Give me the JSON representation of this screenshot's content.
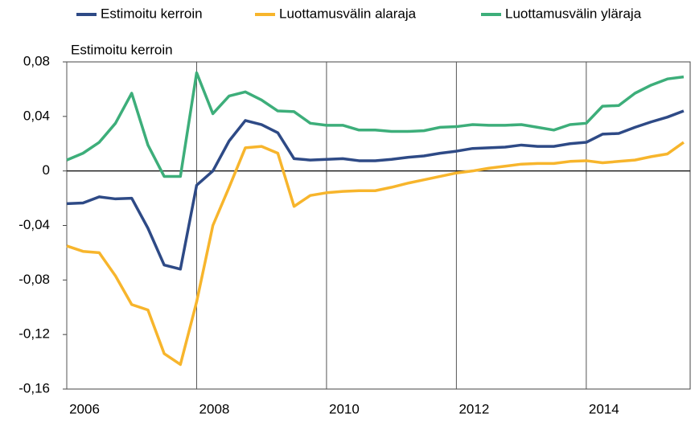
{
  "chart_data": {
    "type": "line",
    "y_axis_title": "Estimoitu kerroin",
    "x": [
      2006,
      2006.25,
      2006.5,
      2006.75,
      2007,
      2007.25,
      2007.5,
      2007.75,
      2008,
      2008.25,
      2008.5,
      2008.75,
      2009,
      2009.25,
      2009.5,
      2009.75,
      2010,
      2010.25,
      2010.5,
      2010.75,
      2011,
      2011.25,
      2011.5,
      2011.75,
      2012,
      2012.25,
      2012.5,
      2012.75,
      2013,
      2013.25,
      2013.5,
      2013.75,
      2014,
      2014.25,
      2014.5,
      2014.75,
      2015,
      2015.25,
      2015.5
    ],
    "series": [
      {
        "name": "Estimoitu kerroin",
        "color": "#2e4a86",
        "values": [
          -0.024,
          -0.0235,
          -0.019,
          -0.0205,
          -0.02,
          -0.042,
          -0.069,
          -0.072,
          -0.0105,
          0.0,
          0.022,
          0.037,
          0.034,
          0.028,
          0.009,
          0.008,
          0.0085,
          0.009,
          0.0075,
          0.0075,
          0.0085,
          0.01,
          0.011,
          0.013,
          0.0145,
          0.0165,
          0.017,
          0.0175,
          0.019,
          0.018,
          0.018,
          0.02,
          0.021,
          0.027,
          0.0275,
          0.032,
          0.036,
          0.0395,
          0.044
        ]
      },
      {
        "name": "Luottamusvälin alaraja",
        "color": "#f7b52c",
        "values": [
          -0.055,
          -0.059,
          -0.06,
          -0.077,
          -0.098,
          -0.102,
          -0.134,
          -0.142,
          -0.096,
          -0.04,
          -0.012,
          0.017,
          0.018,
          0.013,
          -0.026,
          -0.018,
          -0.016,
          -0.015,
          -0.0145,
          -0.0145,
          -0.012,
          -0.009,
          -0.0065,
          -0.004,
          -0.0015,
          0.0,
          0.002,
          0.0035,
          0.005,
          0.0055,
          0.0055,
          0.007,
          0.0075,
          0.006,
          0.007,
          0.008,
          0.0105,
          0.0125,
          0.021
        ]
      },
      {
        "name": "Luottamusvälin yläraja",
        "color": "#3dae7a",
        "values": [
          0.008,
          0.013,
          0.021,
          0.035,
          0.057,
          0.019,
          -0.004,
          -0.004,
          0.072,
          0.042,
          0.055,
          0.058,
          0.052,
          0.044,
          0.0435,
          0.035,
          0.0335,
          0.0335,
          0.03,
          0.03,
          0.029,
          0.029,
          0.0295,
          0.032,
          0.0325,
          0.034,
          0.0335,
          0.0335,
          0.034,
          0.032,
          0.03,
          0.034,
          0.035,
          0.0475,
          0.048,
          0.057,
          0.063,
          0.0675,
          0.069
        ]
      }
    ],
    "xlim": [
      2006,
      2015.6
    ],
    "xticks": [
      2006,
      2008,
      2010,
      2012,
      2014
    ],
    "ylim": [
      -0.16,
      0.08
    ],
    "yticks": [
      {
        "value": -0.16,
        "label": "-0,16"
      },
      {
        "value": -0.12,
        "label": "-0,12"
      },
      {
        "value": -0.08,
        "label": "-0,08"
      },
      {
        "value": -0.04,
        "label": "-0,04"
      },
      0,
      {
        "value": 0.04,
        "label": "0,04"
      },
      {
        "value": 0.08,
        "label": "0,08"
      }
    ],
    "grid": "x",
    "legend": "top"
  }
}
